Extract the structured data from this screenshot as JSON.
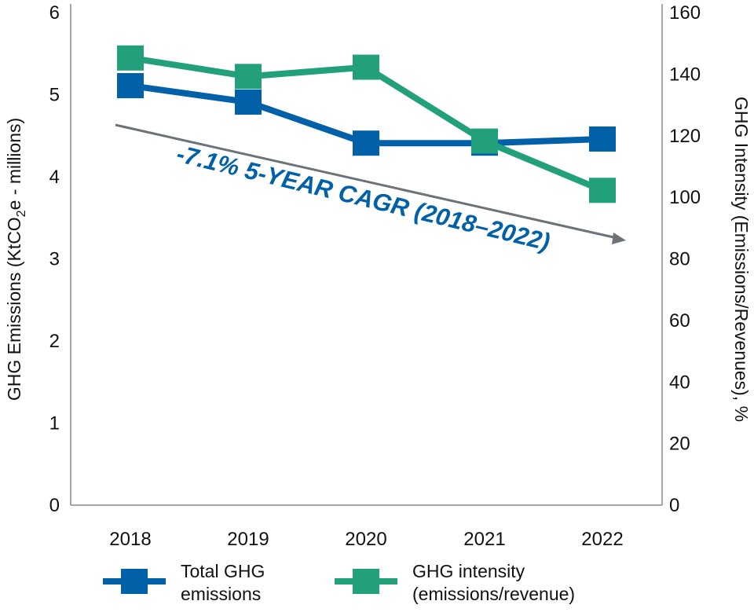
{
  "chart_data": {
    "type": "line",
    "categories": [
      "2018",
      "2019",
      "2020",
      "2021",
      "2022"
    ],
    "series": [
      {
        "name": "Total GHG emissions",
        "legend_lines": [
          "Total GHG",
          "emissions"
        ],
        "axis": "left",
        "color": "#0060a8",
        "values": [
          5.1,
          4.9,
          4.4,
          4.4,
          4.45
        ]
      },
      {
        "name": "GHG intensity (emissions/revenue)",
        "legend_lines": [
          "GHG intensity",
          "(emissions/revenue)"
        ],
        "axis": "right",
        "color": "#22a07c",
        "values": [
          145,
          139,
          142,
          118,
          102
        ]
      }
    ],
    "ylabel_left_parts": [
      "GHG Emissions (KtCO",
      "2",
      "e - millions)"
    ],
    "ylabel_right": "GHG Intensity (Emissions/Revenues), %",
    "ylim_left": [
      0,
      6
    ],
    "ylim_right": [
      0,
      160
    ],
    "yticks_left": [
      "0",
      "1",
      "2",
      "3",
      "4",
      "5",
      "6"
    ],
    "yticks_right": [
      "0",
      "20",
      "40",
      "60",
      "80",
      "100",
      "120",
      "140",
      "160"
    ],
    "annotation": "-7.1% 5-YEAR CAGR (2018–2022)",
    "annotation_color": "#0060a8",
    "trend_arrow_color": "#6b7278",
    "grid": false,
    "legend_position": "bottom"
  }
}
